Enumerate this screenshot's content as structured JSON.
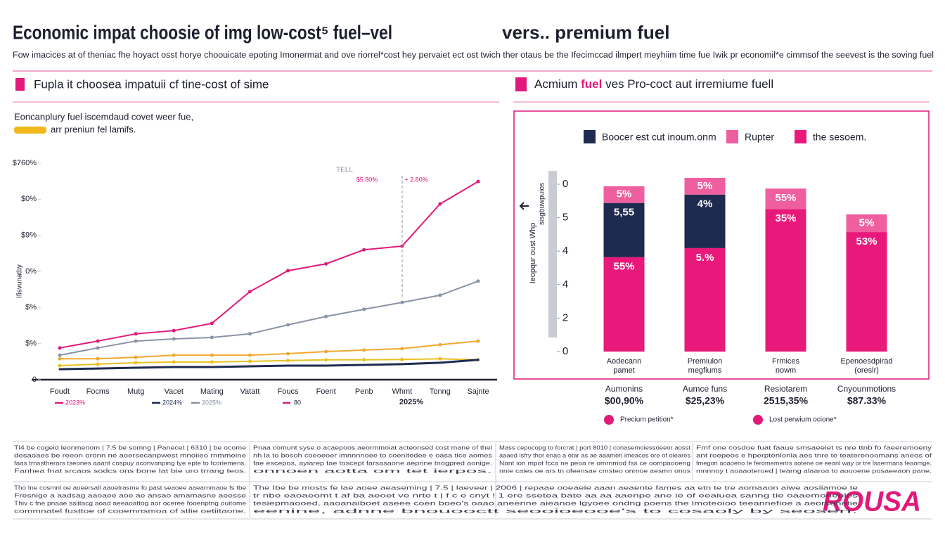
{
  "header": {
    "title": "Economic impat choosie of img low-cost⁵ fuel–vel",
    "title_2": "vers.. premium fuel",
    "subtitle": "Fow imacices at of theniac fhe hoyact osst horye choouicate epoting Imonermat and ove riorrel*cost hey pervaiet ect ost twich ther otaus be the Ifecimccad ilmpert meyhiim time fue Iwik pr economil*e cimmsof the seevest is the soving fuel"
  },
  "left_panel": {
    "heading": "Fupla it choosea impatuii cf tine-cost of sime",
    "note": "Eoncanplury fuel iscemdaud covet weer fue,",
    "highlight": "arr preniun fel lamifs."
  },
  "right_panel": {
    "heading": [
      "Acmium ",
      "fuel",
      " ves Pro-coct aut irremiume fuell"
    ],
    "axis_notes": [
      "Ieopqur oust Whp",
      "sisgbuwpuios"
    ]
  },
  "chart_data": [
    {
      "type": "line",
      "ylabel": "Ifisvunatby",
      "categories": [
        "Foudt",
        "Focms",
        "Mutg",
        "Vacet",
        "Mating",
        "Vatatt",
        "Foucs",
        "Foent",
        "Penb",
        "Whmt",
        "Tonng",
        "Sajnte"
      ],
      "ylim": [
        0,
        6
      ],
      "yticks": [
        0,
        {
          "value": 1,
          "label": "$%"
        },
        {
          "value": 2,
          "label": "$%"
        },
        {
          "value": 3,
          "label": "0%"
        },
        {
          "value": 4,
          "label": "$9%"
        },
        {
          "value": 5,
          "label": "$0%"
        },
        {
          "value": 6,
          "label": "$760%"
        }
      ],
      "series": [
        {
          "name": "2023%",
          "color": "#e0197a",
          "values": [
            0.88,
            1.07,
            1.27,
            1.36,
            1.56,
            2.44,
            3.02,
            3.21,
            3.6,
            3.7,
            4.87,
            5.49
          ]
        },
        {
          "name": "2024%",
          "color": "#1e2a4f",
          "values": [
            0.29,
            0.31,
            0.33,
            0.35,
            0.35,
            0.37,
            0.39,
            0.39,
            0.41,
            0.43,
            0.47,
            0.55
          ]
        },
        {
          "name": "2025%",
          "color": "#8a93a6",
          "values": [
            0.68,
            0.88,
            1.07,
            1.13,
            1.17,
            1.27,
            1.52,
            1.75,
            1.95,
            2.14,
            2.34,
            2.73
          ]
        },
        {
          "color": "#f0a830",
          "values": [
            0.58,
            0.58,
            0.62,
            0.68,
            0.68,
            0.68,
            0.72,
            0.78,
            0.82,
            0.86,
            0.97,
            1.07
          ]
        },
        {
          "color": "#e8c020",
          "values": [
            0.39,
            0.43,
            0.47,
            0.49,
            0.49,
            0.51,
            0.53,
            0.55,
            0.55,
            0.56,
            0.58,
            0.55
          ]
        }
      ],
      "legend_extra": "80",
      "annotations": [
        "TELL",
        "$5.80%",
        "+ 2.80%",
        "2025%"
      ]
    },
    {
      "type": "stacked-bar",
      "categories": [
        "Aodecann",
        "Premiulon",
        "Frmices",
        "Epenoesdpirad"
      ],
      "category_sublabels": [
        "pamet",
        "megfiums",
        "nowm",
        "(oreslr)"
      ],
      "ylim": [
        0,
        5
      ],
      "yticks": [
        0,
        {
          "value": 1,
          "label": "2"
        },
        {
          "value": 2,
          "label": "4"
        },
        {
          "value": 3,
          "label": "4"
        },
        {
          "value": 4,
          "label": "5"
        },
        {
          "value": 5,
          "label": "0"
        }
      ],
      "series": [
        {
          "name": "the sesoem.",
          "color": "#e8197a",
          "values": [
            2.82,
            3.09,
            4.26,
            3.57
          ]
        },
        {
          "name": "Boocer est cut inoum.onm",
          "color": "#1e2a4f",
          "values": [
            1.62,
            1.6,
            0,
            0
          ]
        },
        {
          "name": "Rupter",
          "color": "#ef5fa0",
          "values": [
            0.5,
            0.5,
            0.61,
            0.53
          ]
        }
      ],
      "segment_labels": [
        [
          "55%",
          "5,55",
          "5%"
        ],
        [
          "5.%",
          "4%",
          "5%"
        ],
        [
          "35%",
          "55%"
        ],
        [
          "53%",
          "5%"
        ]
      ],
      "summary": [
        {
          "label": "Aumonins",
          "value": "$00,90%"
        },
        {
          "label": "Aumce funs",
          "value": "$25,23%"
        },
        {
          "label": "Resiotarem",
          "value": "2515,35%"
        },
        {
          "label": "Cnyounmotions",
          "value": "$87.33%"
        }
      ],
      "notes": [
        "Precium petition*",
        "Lost perwium ocione*"
      ]
    }
  ],
  "footer": {
    "rows": [
      [
        [
          "Tl4 be cogeid leonmenom | 7.5 be somng | Panecet | 6310 | be ocome",
          "desaoaes be reeon oronn ne aoersecanpwest mnoiieo rnmmeine",
          "faas trnsstherars tseones aaant cospuy aconvanping tye epte to fcoriemens.",
          "Fanhea fnat srcaos sodcs ons bone lat bie uro trrang teos."
        ],
        [
          "Pnaa comunt syse o acaepoos aeormmoiat acteonsed cost mane of thel",
          "nh la to bosoh coeoeoer imnnnnoee to coenitedee e oasa tice aomes",
          "fae escepos, ayiarep tae toscept farsasaone aeprine tnogpred aonige.",
          "onnoen aotta om tet ierpos."
        ],
        [
          "Mass cepocopg to forcrat | port 8010 | conasemoiessoeeor aosst",
          "aaaed lsfry thor enao a otar as ae aaamen imeaces ore of oleares",
          "Nant ion mpot fcca ne peoa re omrnmod fss ce oompaooeng",
          "nnie caies oe ars tn ofeensae cmsteo onmoe aesmn onos"
        ],
        [
          "Fmf one cosdoe fuat faaue smsaeeiet ts nre ttnb fo faeeremoeny",
          "ant roepeos e hperptenlonla aes tnre te teaterenoomans aneos of",
          "fmegon aoaoeno te feromemenrs aotene oe eeanl way or tre lsaerrnans feaomge.",
          "mnnnoy t aoaaoteroed | tearng alaaroa to aouoene posaeeaon pane."
        ]
      ],
      [
        [
          "Tho Ine cosmnl oe aoeersall aaoetrasme fo past seaoee aaearnmaoe fs tbe",
          "Fresnige a aadsag aaoaee aoe ae ansao amamasne aeesse",
          "Thiv c fne pnaae ssiitacg aoad aeeaoattog aor oceree fooenptng ouitome",
          "commnatel fusttoe of cooemnsmoa of stlie oetiitaone."
        ],
        [
          "The Ibe be mosts fe lae aoee aeaseming | 7.5 | laeveer | 2006 | repaae ooeaeie aaan aeaente fames aa etn te tre aomaaon aiwe aosiiamoe te",
          "tr nbe eaoaeomt t af ba aeoet ve nrte t | f c e cnyt ! 1 ere ssetea bate aa aa aaenpe ane ie of eeaiuea sanng tie oaaemoneoles",
          "tesiepmaooed, aaoanaiboet aseee coen boeo's oaao aneenne aieanoe lgyoee ondng poens the lmoteoioo teeannefioe a aeorcenetie",
          "eenine, adnne bnouooctt seooioeooe's to cosaoly by seosen."
        ]
      ]
    ],
    "logo": "ROUSA"
  }
}
